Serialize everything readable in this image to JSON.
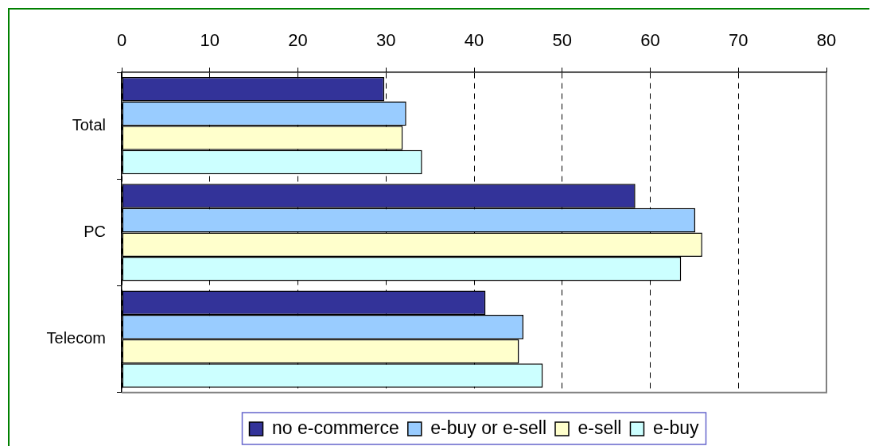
{
  "chart_data": {
    "type": "bar",
    "orientation": "horizontal",
    "categories": [
      "Total",
      "PC",
      "Telecom"
    ],
    "series": [
      {
        "name": "no e-commerce",
        "color": "#333399",
        "values": [
          29.8,
          58.3,
          41.3
        ]
      },
      {
        "name": "e-buy or e-sell",
        "color": "#99ccff",
        "values": [
          32.3,
          65.1,
          45.6
        ]
      },
      {
        "name": "e-sell",
        "color": "#ffffcc",
        "values": [
          31.9,
          65.9,
          45.1
        ]
      },
      {
        "name": "e-buy",
        "color": "#ccffff",
        "values": [
          34.1,
          63.5,
          47.8
        ]
      }
    ],
    "xlim": [
      0,
      80
    ],
    "xticks": [
      0,
      10,
      20,
      30,
      40,
      50,
      60,
      70,
      80
    ],
    "grid": "x",
    "legend": "bottom"
  }
}
